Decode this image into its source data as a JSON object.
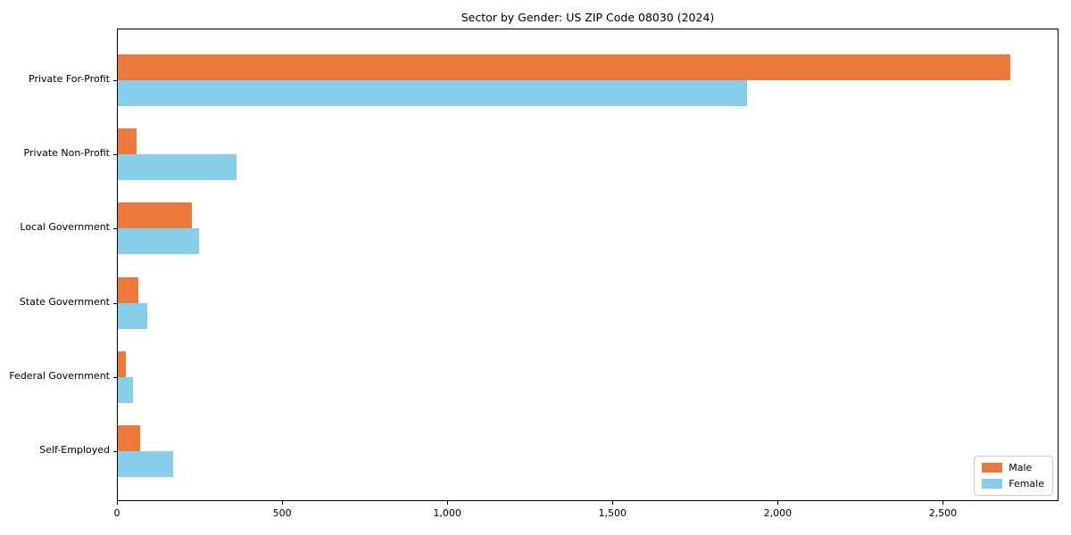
{
  "chart_data": {
    "type": "bar",
    "orientation": "horizontal",
    "title": "Sector by Gender: US ZIP Code 08030 (2024)",
    "categories": [
      "Private For-Profit",
      "Private Non-Profit",
      "Local Government",
      "State Government",
      "Federal Government",
      "Self-Employed"
    ],
    "series": [
      {
        "name": "Male",
        "color": "#ec7a3c",
        "values": [
          2707,
          56,
          225,
          63,
          25,
          68
        ]
      },
      {
        "name": "Female",
        "color": "#87ceeb",
        "values": [
          1908,
          360,
          246,
          90,
          47,
          168
        ]
      }
    ],
    "xlabel": "",
    "ylabel": "",
    "xlim": [
      0,
      2850
    ],
    "xticks": [
      {
        "value": 0,
        "label": "0"
      },
      {
        "value": 500,
        "label": "500"
      },
      {
        "value": 1000,
        "label": "1,000"
      },
      {
        "value": 1500,
        "label": "1,500"
      },
      {
        "value": 2000,
        "label": "2,000"
      },
      {
        "value": 2500,
        "label": "2,500"
      }
    ],
    "grid": false,
    "legend": {
      "position": "lower right",
      "labels": [
        "Male",
        "Female"
      ]
    },
    "axis_color": "#000000",
    "background_color": "#ffffff"
  }
}
